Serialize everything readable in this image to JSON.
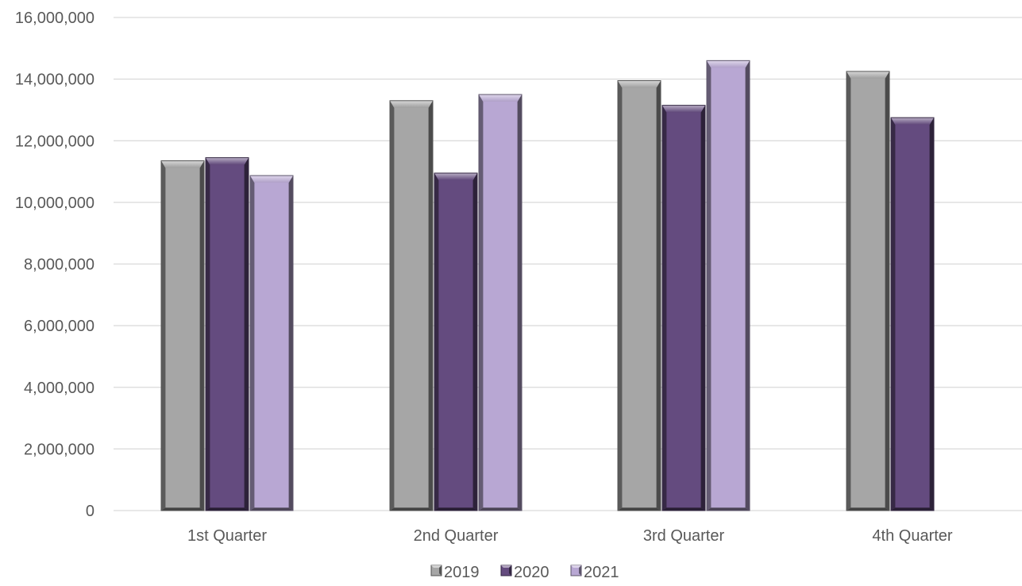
{
  "chart_data": {
    "type": "bar",
    "title": "",
    "xlabel": "",
    "ylabel": "",
    "categories": [
      "1st Quarter",
      "2nd Quarter",
      "3rd Quarter",
      "4th Quarter"
    ],
    "series": [
      {
        "name": "2019",
        "color": "#a6a6a6",
        "values": [
          11350000,
          13300000,
          13950000,
          14250000
        ]
      },
      {
        "name": "2020",
        "color": "#644b7f",
        "values": [
          11450000,
          10950000,
          13150000,
          12750000
        ]
      },
      {
        "name": "2021",
        "color": "#b8a7d3",
        "values": [
          10870000,
          13500000,
          14600000,
          null
        ]
      }
    ],
    "ylim": [
      0,
      16000000
    ],
    "yticks": [
      0,
      2000000,
      4000000,
      6000000,
      8000000,
      10000000,
      12000000,
      14000000,
      16000000
    ],
    "ytick_labels": [
      "0",
      "2,000,000",
      "4,000,000",
      "6,000,000",
      "8,000,000",
      "10,000,000",
      "12,000,000",
      "14,000,000",
      "16,000,000"
    ],
    "grid": true,
    "legend_position": "bottom-center",
    "style": "bevelled"
  }
}
